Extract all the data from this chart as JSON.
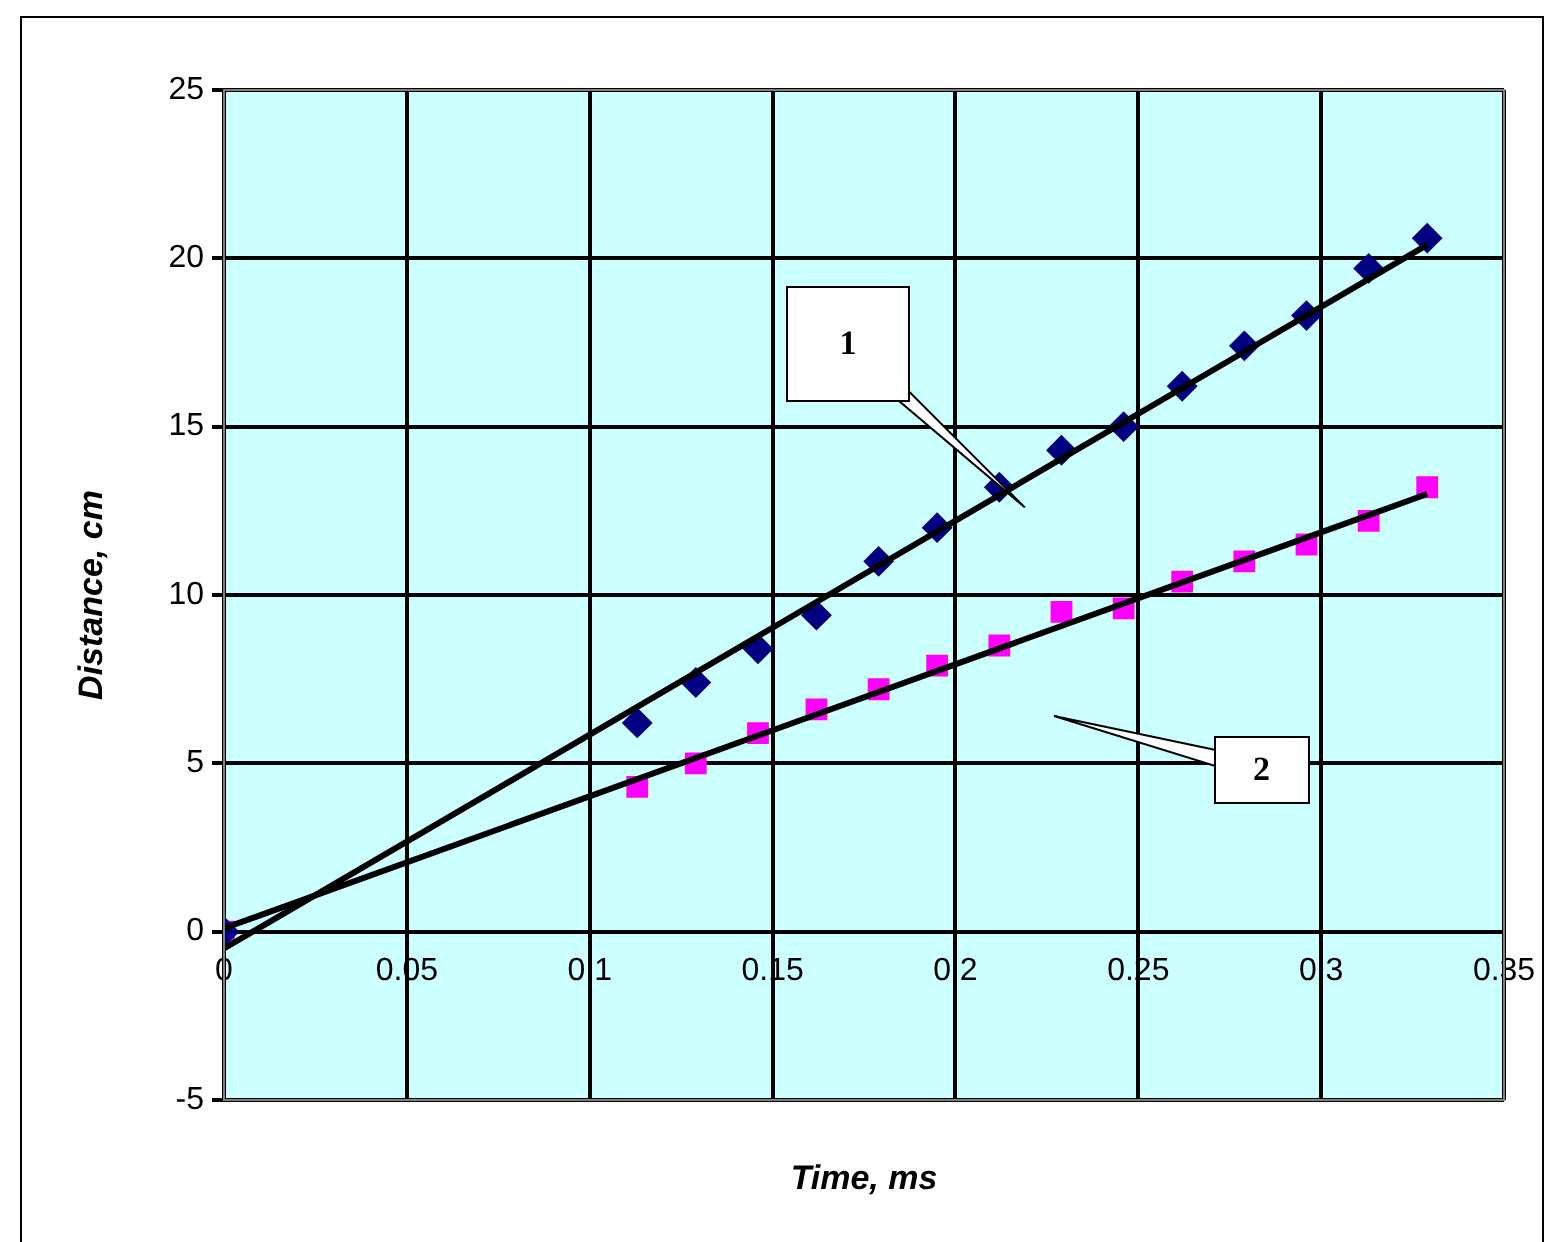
{
  "chart_data": {
    "type": "scatter",
    "xlabel": "Time, ms",
    "ylabel": "Distance, cm",
    "xlim": [
      0,
      0.35
    ],
    "xticks": [
      0,
      0.05,
      0.1,
      0.15,
      0.2,
      0.25,
      0.3,
      0.35
    ],
    "ylim": [
      -5,
      25
    ],
    "yticks": [
      -5,
      0,
      5,
      10,
      15,
      20,
      25
    ],
    "grid": true,
    "legend": false,
    "series": [
      {
        "color": "#000080",
        "marker": "diamond",
        "x": [
          0,
          0.113,
          0.129,
          0.146,
          0.162,
          0.179,
          0.195,
          0.212,
          0.229,
          0.246,
          0.262,
          0.279,
          0.296,
          0.313,
          0.329
        ],
        "values": [
          0,
          6.2,
          7.4,
          8.4,
          9.4,
          11.0,
          12.0,
          13.2,
          14.3,
          15.0,
          16.2,
          17.4,
          18.3,
          19.7,
          20.6
        ]
      },
      {
        "color": "#ff00ff",
        "marker": "square",
        "x": [
          0,
          0.113,
          0.129,
          0.146,
          0.162,
          0.179,
          0.195,
          0.212,
          0.229,
          0.246,
          0.262,
          0.279,
          0.296,
          0.313,
          0.329
        ],
        "values": [
          0,
          4.3,
          5.0,
          5.9,
          6.6,
          7.2,
          7.9,
          8.5,
          9.5,
          9.6,
          10.4,
          11.0,
          11.5,
          12.2,
          13.2
        ]
      },
      {
        "type": "line",
        "color": "#000000",
        "marker": "none",
        "x": [
          0,
          0.329
        ],
        "values": [
          -0.5,
          20.4
        ]
      },
      {
        "type": "line",
        "color": "#000000",
        "marker": "none",
        "x": [
          0,
          0.329
        ],
        "values": [
          0.1,
          13.0
        ]
      }
    ],
    "annotations": [
      "1",
      "2"
    ]
  }
}
